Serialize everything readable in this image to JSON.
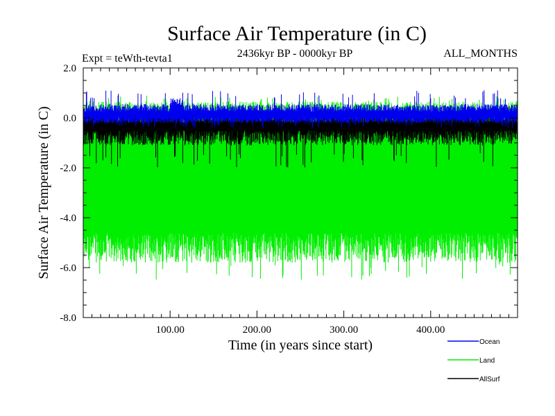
{
  "chart_data": {
    "type": "line",
    "title": "Surface Air Temperature (in C)",
    "subtitle_left": "Expt = teWth-tevta1",
    "subtitle_center": "2436kyr BP - 0000kyr BP",
    "subtitle_right": "ALL_MONTHS",
    "xlabel": "Time (in years since start)",
    "ylabel": "Surface Air Temperature (in C)",
    "xlim": [
      0,
      500
    ],
    "ylim": [
      -8,
      2
    ],
    "x_ticks": [
      100,
      200,
      300,
      400
    ],
    "x_tick_labels": [
      "100.00",
      "200.00",
      "300.00",
      "400.00"
    ],
    "y_ticks": [
      2,
      0,
      -2,
      -4,
      -6,
      -8
    ],
    "y_tick_labels": [
      "2.0",
      "0.0",
      "-2.0",
      "-4.0",
      "-6.0",
      "-8.0"
    ],
    "series": [
      {
        "name": "Land",
        "color": "#00ee00",
        "draw_style": "envelope",
        "upper_mean": 0.3,
        "upper_amp": 0.35,
        "lower_mean": -5.2,
        "lower_amp": 0.6,
        "peak_max": 0.9,
        "trough_min": -6.5
      },
      {
        "name": "AllSurf",
        "color": "#000000",
        "draw_style": "envelope",
        "upper_mean": 0.0,
        "upper_amp": 0.2,
        "lower_mean": -0.8,
        "lower_amp": 0.3,
        "peak_max": 0.5,
        "trough_min": -2.0
      },
      {
        "name": "Ocean",
        "color": "#0000ee",
        "draw_style": "envelope",
        "upper_mean": 0.4,
        "upper_amp": 0.15,
        "lower_mean": -0.1,
        "lower_amp": 0.12,
        "peak_max": 1.1,
        "trough_min": -0.4
      }
    ],
    "legend": [
      {
        "label": "Ocean",
        "color": "#0000ee"
      },
      {
        "label": "Land",
        "color": "#00ee00"
      },
      {
        "label": "AllSurf",
        "color": "#000000"
      }
    ],
    "legend_position": "bottom-right"
  }
}
